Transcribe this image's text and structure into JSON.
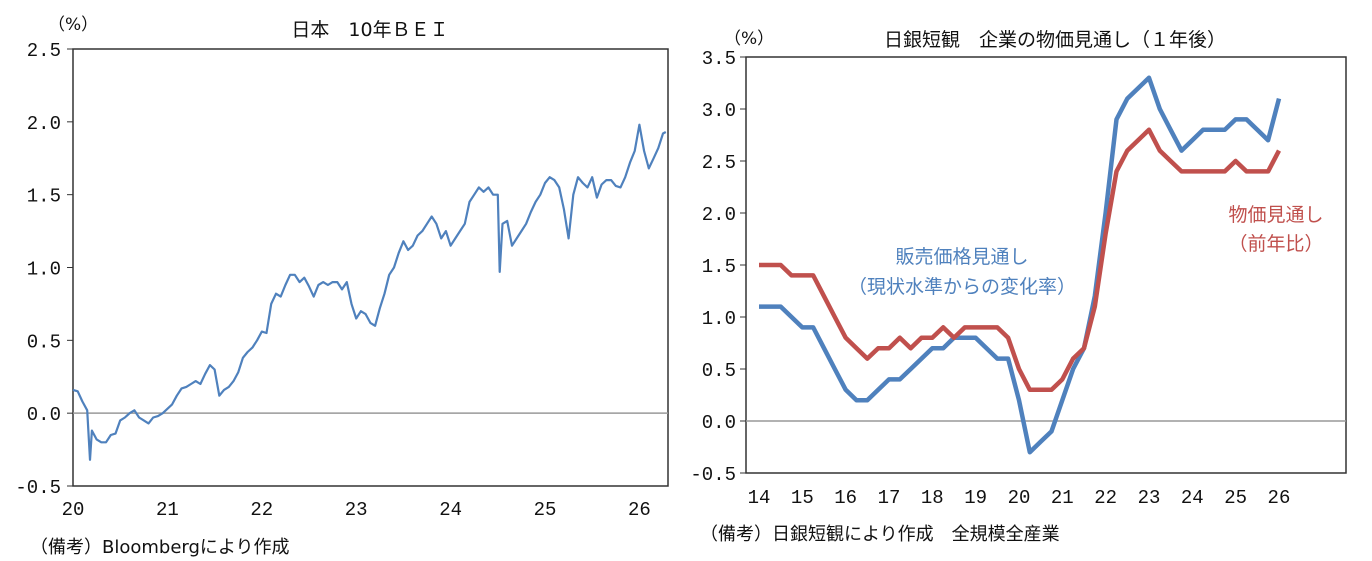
{
  "chart_data": [
    {
      "type": "line",
      "title": "日本　10年ＢＥＩ",
      "ylabel": "（%）",
      "note": "（備考）Bloombergにより作成",
      "ylim": [
        -0.5,
        2.5
      ],
      "yticks": [
        "2.5",
        "2.0",
        "1.5",
        "1.0",
        "0.5",
        "0.0",
        "-0.5"
      ],
      "xticks": [
        "20",
        "21",
        "22",
        "23",
        "24",
        "25",
        "26"
      ],
      "xlim": [
        2020,
        2026.3
      ],
      "grid": false,
      "zero_line": true,
      "series": [
        {
          "color": "#4f81bd",
          "x": [
            2020.0,
            2020.05,
            2020.1,
            2020.15,
            2020.18,
            2020.2,
            2020.25,
            2020.3,
            2020.35,
            2020.4,
            2020.45,
            2020.5,
            2020.55,
            2020.6,
            2020.65,
            2020.7,
            2020.75,
            2020.8,
            2020.85,
            2020.9,
            2020.95,
            2021.0,
            2021.05,
            2021.1,
            2021.15,
            2021.2,
            2021.25,
            2021.3,
            2021.35,
            2021.4,
            2021.45,
            2021.5,
            2021.55,
            2021.6,
            2021.65,
            2021.7,
            2021.75,
            2021.8,
            2021.85,
            2021.9,
            2021.95,
            2022.0,
            2022.05,
            2022.1,
            2022.15,
            2022.2,
            2022.25,
            2022.3,
            2022.35,
            2022.4,
            2022.45,
            2022.5,
            2022.55,
            2022.6,
            2022.65,
            2022.7,
            2022.75,
            2022.8,
            2022.85,
            2022.9,
            2022.95,
            2023.0,
            2023.05,
            2023.1,
            2023.15,
            2023.2,
            2023.25,
            2023.3,
            2023.35,
            2023.4,
            2023.45,
            2023.5,
            2023.55,
            2023.6,
            2023.65,
            2023.7,
            2023.75,
            2023.8,
            2023.85,
            2023.9,
            2023.95,
            2024.0,
            2024.05,
            2024.1,
            2024.15,
            2024.2,
            2024.25,
            2024.3,
            2024.35,
            2024.4,
            2024.45,
            2024.5,
            2024.52,
            2024.55,
            2024.6,
            2024.65,
            2024.7,
            2024.75,
            2024.8,
            2024.85,
            2024.9,
            2024.95,
            2025.0,
            2025.05,
            2025.1,
            2025.15,
            2025.2,
            2025.25,
            2025.3,
            2025.35,
            2025.4,
            2025.45,
            2025.5,
            2025.55,
            2025.6,
            2025.65,
            2025.7,
            2025.75,
            2025.8,
            2025.85,
            2025.9,
            2025.95,
            2026.0,
            2026.05,
            2026.1,
            2026.15,
            2026.2,
            2026.25,
            2026.28
          ],
          "y": [
            0.16,
            0.15,
            0.08,
            0.02,
            -0.32,
            -0.12,
            -0.18,
            -0.2,
            -0.2,
            -0.15,
            -0.14,
            -0.05,
            -0.03,
            0.0,
            0.02,
            -0.03,
            -0.05,
            -0.07,
            -0.03,
            -0.02,
            0.0,
            0.03,
            0.06,
            0.12,
            0.17,
            0.18,
            0.2,
            0.22,
            0.2,
            0.27,
            0.33,
            0.3,
            0.12,
            0.16,
            0.18,
            0.22,
            0.28,
            0.38,
            0.42,
            0.45,
            0.5,
            0.56,
            0.55,
            0.75,
            0.82,
            0.8,
            0.88,
            0.95,
            0.95,
            0.9,
            0.93,
            0.87,
            0.8,
            0.88,
            0.9,
            0.88,
            0.9,
            0.9,
            0.85,
            0.9,
            0.75,
            0.65,
            0.7,
            0.68,
            0.62,
            0.6,
            0.72,
            0.82,
            0.95,
            1.0,
            1.1,
            1.18,
            1.12,
            1.15,
            1.22,
            1.25,
            1.3,
            1.35,
            1.3,
            1.2,
            1.25,
            1.15,
            1.2,
            1.25,
            1.3,
            1.45,
            1.5,
            1.55,
            1.52,
            1.55,
            1.5,
            1.5,
            0.97,
            1.3,
            1.32,
            1.15,
            1.2,
            1.25,
            1.3,
            1.38,
            1.45,
            1.5,
            1.58,
            1.62,
            1.6,
            1.55,
            1.4,
            1.2,
            1.5,
            1.62,
            1.58,
            1.55,
            1.62,
            1.48,
            1.57,
            1.6,
            1.6,
            1.56,
            1.55,
            1.62,
            1.72,
            1.8,
            1.98,
            1.8,
            1.68,
            1.75,
            1.82,
            1.92,
            1.93
          ]
        }
      ]
    },
    {
      "type": "line",
      "title": "日銀短観　企業の物価見通し（１年後）",
      "ylabel": "（%）",
      "note": "（備考）日銀短観により作成　全規模全産業",
      "ylim": [
        -0.5,
        3.5
      ],
      "yticks": [
        "3.5",
        "3.0",
        "2.5",
        "2.0",
        "1.5",
        "1.0",
        "0.5",
        "0.0",
        "-0.5"
      ],
      "xticks": [
        "14",
        "15",
        "16",
        "17",
        "18",
        "19",
        "20",
        "21",
        "22",
        "23",
        "24",
        "25",
        "26"
      ],
      "frequency": "quarterly",
      "grid": false,
      "zero_line": true,
      "series": [
        {
          "name": "販売価格見通し",
          "name_sub": "（現状水準からの変化率）",
          "color": "#4f81bd",
          "values": [
            1.1,
            1.1,
            1.1,
            1.0,
            0.9,
            0.9,
            0.7,
            0.5,
            0.3,
            0.2,
            0.2,
            0.3,
            0.4,
            0.4,
            0.5,
            0.6,
            0.7,
            0.7,
            0.8,
            0.8,
            0.8,
            0.7,
            0.6,
            0.6,
            0.2,
            -0.3,
            -0.2,
            -0.1,
            0.2,
            0.5,
            0.7,
            1.2,
            2.0,
            2.9,
            3.1,
            3.2,
            3.3,
            3.0,
            2.8,
            2.6,
            2.7,
            2.8,
            2.8,
            2.8,
            2.9,
            2.9,
            2.8,
            2.7,
            3.1
          ]
        },
        {
          "name": "物価見通し",
          "name_sub": "（前年比）",
          "color": "#c0504d",
          "values": [
            1.5,
            1.5,
            1.5,
            1.4,
            1.4,
            1.4,
            1.2,
            1.0,
            0.8,
            0.7,
            0.6,
            0.7,
            0.7,
            0.8,
            0.7,
            0.8,
            0.8,
            0.9,
            0.8,
            0.9,
            0.9,
            0.9,
            0.9,
            0.8,
            0.5,
            0.3,
            0.3,
            0.3,
            0.4,
            0.6,
            0.7,
            1.1,
            1.8,
            2.4,
            2.6,
            2.7,
            2.8,
            2.6,
            2.5,
            2.4,
            2.4,
            2.4,
            2.4,
            2.4,
            2.5,
            2.4,
            2.4,
            2.4,
            2.6
          ]
        }
      ]
    }
  ]
}
